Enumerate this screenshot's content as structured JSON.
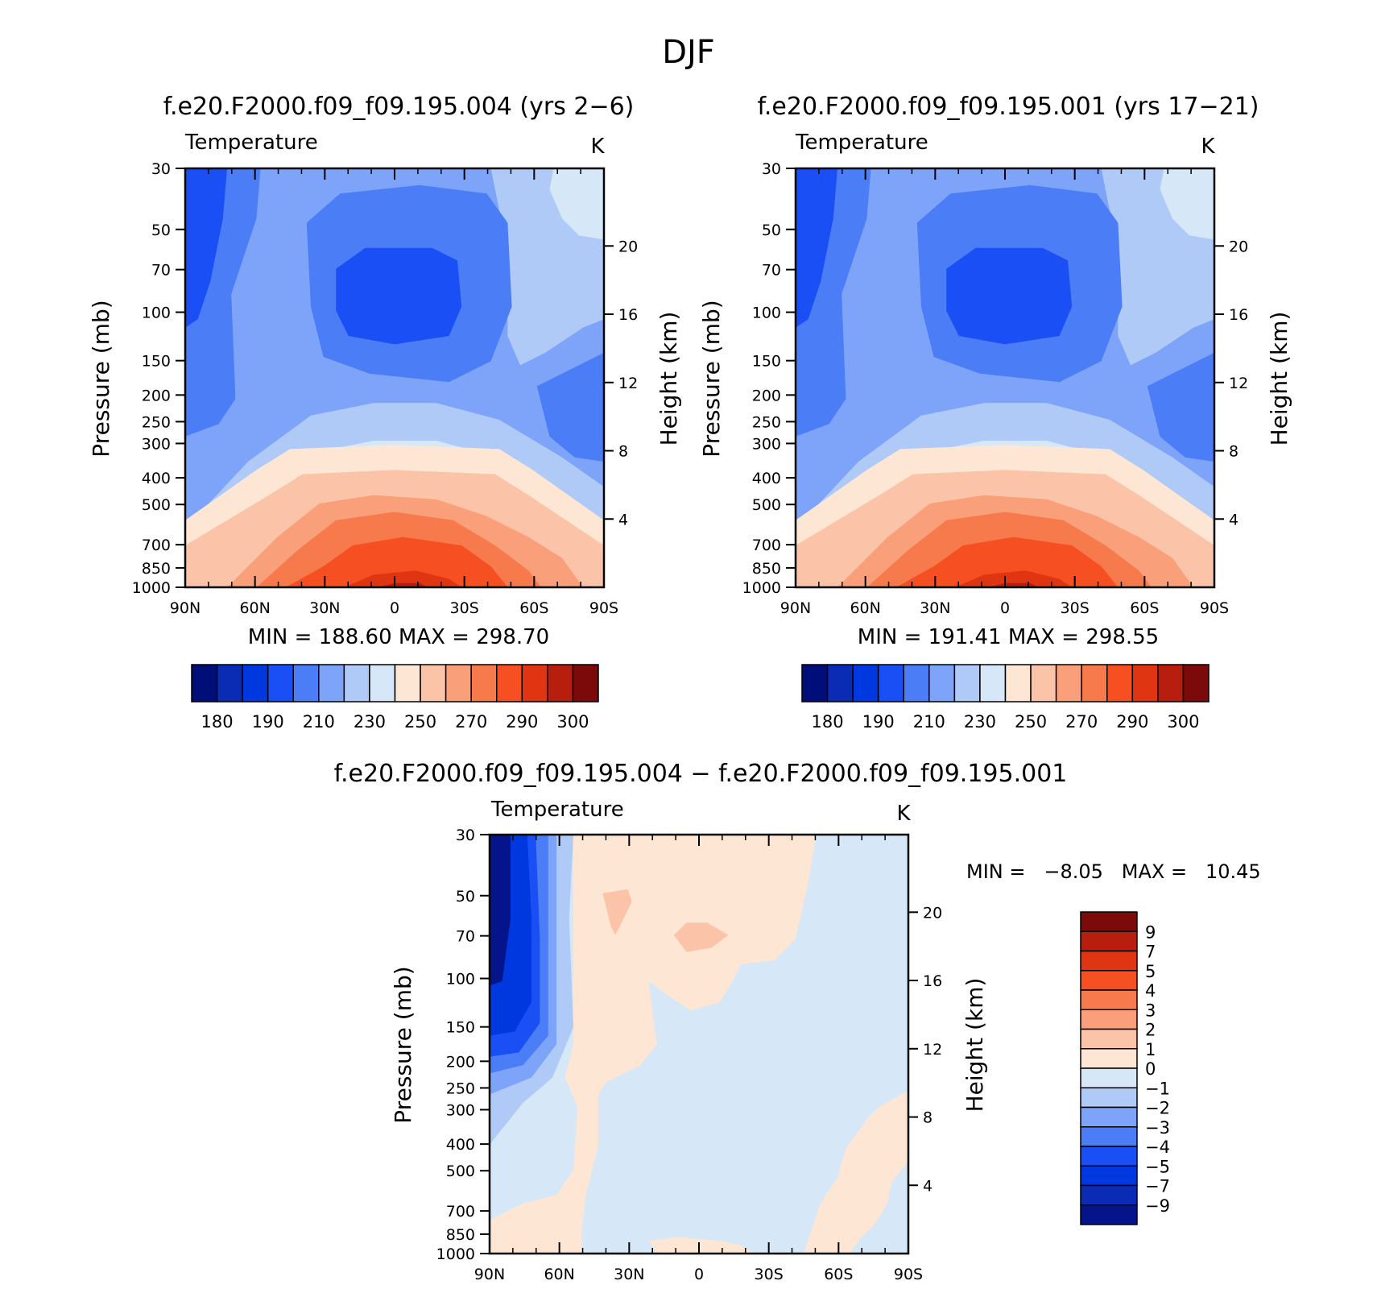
{
  "figure": {
    "title": "DJF"
  },
  "colors": {
    "abs_palette": [
      "#000e7a",
      "#0a2bb3",
      "#0038e0",
      "#1a4ff5",
      "#4a7df6",
      "#7da4f8",
      "#b0caf8",
      "#d6e7f8",
      "#fde6d4",
      "#fbc4a8",
      "#f9a07b",
      "#f77a4c",
      "#f54f22",
      "#df3512",
      "#b71e0e",
      "#7c0a0a"
    ],
    "diff_palette": [
      "#06148c",
      "#0a2bb3",
      "#0038e0",
      "#1a4ff5",
      "#4a7df6",
      "#7da4f8",
      "#b0caf8",
      "#d6e7f8",
      "#fde6d4",
      "#fbc4a8",
      "#f9a07b",
      "#f77a4c",
      "#f54f22",
      "#df3512",
      "#b71e0e",
      "#7c0a0a"
    ]
  },
  "chart_data": [
    {
      "id": "panel-1",
      "type": "heatmap",
      "title": "f.e20.F2000.f09_f09.195.004 (yrs 2−6)",
      "variable": "Temperature",
      "units": "K",
      "ylabel": "Pressure (mb)",
      "y2label": "Height (km)",
      "x_ticklabels": [
        "90N",
        "60N",
        "30N",
        "0",
        "30S",
        "60S",
        "90S"
      ],
      "y_ticklabels": [
        "30",
        "50",
        "70",
        "100",
        "150",
        "200",
        "250",
        "300",
        "400",
        "500",
        "700",
        "850",
        "1000"
      ],
      "y_ticks": [
        30,
        50,
        70,
        100,
        150,
        200,
        250,
        300,
        400,
        500,
        700,
        850,
        1000
      ],
      "y2_ticks": [
        4,
        8,
        12,
        16,
        20
      ],
      "min_max": "MIN = 188.60   MAX = 298.70",
      "min": 188.6,
      "max": 298.7,
      "colorbar_labels": [
        "180",
        "190",
        "210",
        "230",
        "250",
        "270",
        "290",
        "300"
      ]
    },
    {
      "id": "panel-2",
      "type": "heatmap",
      "title": "f.e20.F2000.f09_f09.195.001 (yrs 17−21)",
      "variable": "Temperature",
      "units": "K",
      "ylabel": "Pressure (mb)",
      "y2label": "Height (km)",
      "x_ticklabels": [
        "90N",
        "60N",
        "30N",
        "0",
        "30S",
        "60S",
        "90S"
      ],
      "y_ticklabels": [
        "30",
        "50",
        "70",
        "100",
        "150",
        "200",
        "250",
        "300",
        "400",
        "500",
        "700",
        "850",
        "1000"
      ],
      "y_ticks": [
        30,
        50,
        70,
        100,
        150,
        200,
        250,
        300,
        400,
        500,
        700,
        850,
        1000
      ],
      "y2_ticks": [
        4,
        8,
        12,
        16,
        20
      ],
      "min_max": "MIN = 191.41   MAX = 298.55",
      "min": 191.41,
      "max": 298.55,
      "colorbar_labels": [
        "180",
        "190",
        "210",
        "230",
        "250",
        "270",
        "290",
        "300"
      ]
    },
    {
      "id": "panel-diff",
      "type": "heatmap",
      "title": "f.e20.F2000.f09_f09.195.004 − f.e20.F2000.f09_f09.195.001",
      "variable": "Temperature",
      "units": "K",
      "ylabel": "Pressure (mb)",
      "y2label": "Height (km)",
      "x_ticklabels": [
        "90N",
        "60N",
        "30N",
        "0",
        "30S",
        "60S",
        "90S"
      ],
      "y_ticklabels": [
        "30",
        "50",
        "70",
        "100",
        "150",
        "200",
        "250",
        "300",
        "400",
        "500",
        "700",
        "850",
        "1000"
      ],
      "y_ticks": [
        30,
        50,
        70,
        100,
        150,
        200,
        250,
        300,
        400,
        500,
        700,
        850,
        1000
      ],
      "y2_ticks": [
        4,
        8,
        12,
        16,
        20
      ],
      "min_max": "MIN =   −8.05   MAX =   10.45",
      "min": -8.05,
      "max": 10.45,
      "colorbar_labels": [
        "9",
        "7",
        "5",
        "4",
        "3",
        "2",
        "1",
        "0",
        "−1",
        "−2",
        "−3",
        "−4",
        "−5",
        "−7",
        "−9"
      ]
    }
  ]
}
